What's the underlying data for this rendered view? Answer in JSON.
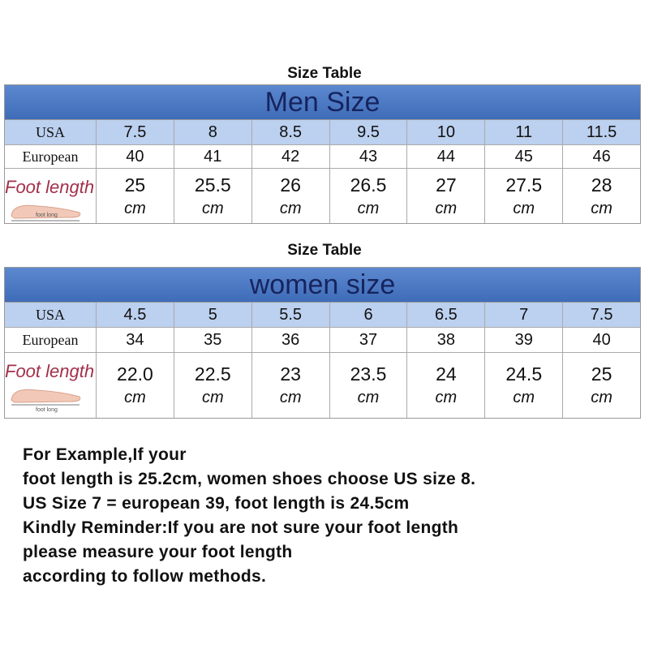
{
  "tables": [
    {
      "caption": "Size Table",
      "title": "Men Size",
      "foot_label": "foot long",
      "rows": [
        {
          "label": "USA",
          "cells": [
            "7.5",
            "8",
            "8.5",
            "9.5",
            "10",
            "11",
            "11.5"
          ]
        },
        {
          "label": "European",
          "cells": [
            "40",
            "41",
            "42",
            "43",
            "44",
            "45",
            "46"
          ]
        },
        {
          "label": "Foot length",
          "cells": [
            {
              "value": "25",
              "unit": "cm"
            },
            {
              "value": "25.5",
              "unit": "cm"
            },
            {
              "value": "26",
              "unit": "cm"
            },
            {
              "value": "26.5",
              "unit": "cm"
            },
            {
              "value": "27",
              "unit": "cm"
            },
            {
              "value": "27.5",
              "unit": "cm"
            },
            {
              "value": "28",
              "unit": "cm"
            }
          ]
        }
      ]
    },
    {
      "caption": "Size Table",
      "title": "women size",
      "foot_label": "foot long",
      "rows": [
        {
          "label": "USA",
          "cells": [
            "4.5",
            "5",
            "5.5",
            "6",
            "6.5",
            "7",
            "7.5"
          ]
        },
        {
          "label": "European",
          "cells": [
            "34",
            "35",
            "36",
            "37",
            "38",
            "39",
            "40"
          ]
        },
        {
          "label": "Foot length",
          "cells": [
            {
              "value": "22.0",
              "unit": "cm"
            },
            {
              "value": "22.5",
              "unit": "cm"
            },
            {
              "value": "23",
              "unit": "cm"
            },
            {
              "value": "23.5",
              "unit": "cm"
            },
            {
              "value": "24",
              "unit": "cm"
            },
            {
              "value": "24.5",
              "unit": "cm"
            },
            {
              "value": "25",
              "unit": "cm"
            }
          ]
        }
      ]
    }
  ],
  "text": [
    "For Example,If your",
    "foot length is 25.2cm, women shoes choose US size 8.",
    "US Size 7 = european 39, foot length is 24.5cm",
    "Kindly Reminder:If you are not sure your foot length",
    "please measure your foot length",
    "according to follow methods."
  ]
}
